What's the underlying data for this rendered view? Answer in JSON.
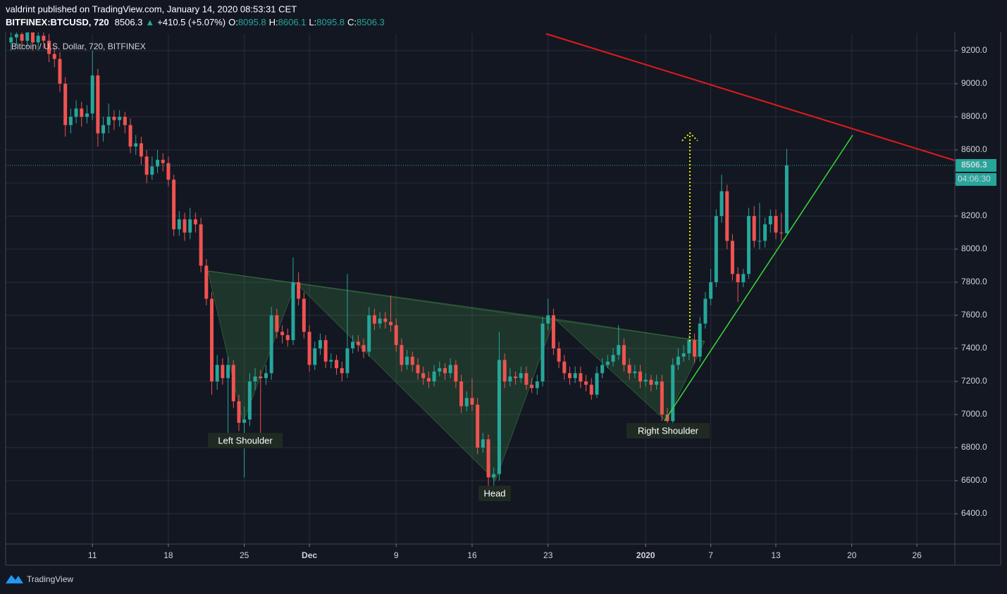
{
  "header": {
    "byline": "valdrint published on TradingView.com, January 14, 2020 08:53:31 CET",
    "symbol": "BITFINEX:BTCUSD, 720",
    "last": "8506.3",
    "arrow": "▲",
    "change": "+410.5 (+5.07%)",
    "ohlc_labels": [
      "O:",
      "H:",
      "L:",
      "C:"
    ],
    "ohlc_values": [
      "8095.8",
      "8606.1",
      "8095.8",
      "8506.3"
    ]
  },
  "chart_data": {
    "type": "candlestick",
    "legend": "Bitcoin / U.S. Dollar, 720, BITFINEX",
    "up_color": "#26a69a",
    "down_color": "#ef5350",
    "ohlc": [
      [
        9250,
        9330,
        9200,
        9280
      ],
      [
        9280,
        9360,
        9230,
        9300
      ],
      [
        9300,
        9350,
        9210,
        9260
      ],
      [
        9260,
        9380,
        9220,
        9310
      ],
      [
        9310,
        9350,
        9200,
        9250
      ],
      [
        9250,
        9340,
        9200,
        9290
      ],
      [
        9290,
        9330,
        9210,
        9260
      ],
      [
        9260,
        9300,
        9130,
        9180
      ],
      [
        9180,
        9220,
        9100,
        9150
      ],
      [
        9150,
        9190,
        8950,
        9000
      ],
      [
        9000,
        9040,
        8680,
        8750
      ],
      [
        8750,
        8850,
        8700,
        8800
      ],
      [
        8800,
        8900,
        8760,
        8850
      ],
      [
        8850,
        8890,
        8740,
        8800
      ],
      [
        8800,
        8870,
        8760,
        8820
      ],
      [
        8820,
        9200,
        8780,
        9050
      ],
      [
        9050,
        9090,
        8620,
        8700
      ],
      [
        8700,
        8800,
        8650,
        8750
      ],
      [
        8750,
        8880,
        8700,
        8800
      ],
      [
        8800,
        8840,
        8720,
        8780
      ],
      [
        8780,
        8840,
        8740,
        8800
      ],
      [
        8800,
        8830,
        8700,
        8750
      ],
      [
        8750,
        8790,
        8580,
        8620
      ],
      [
        8620,
        8690,
        8570,
        8640
      ],
      [
        8640,
        8680,
        8510,
        8560
      ],
      [
        8560,
        8600,
        8400,
        8450
      ],
      [
        8450,
        8560,
        8420,
        8500
      ],
      [
        8500,
        8600,
        8460,
        8540
      ],
      [
        8540,
        8580,
        8470,
        8520
      ],
      [
        8520,
        8560,
        8380,
        8420
      ],
      [
        8420,
        8450,
        8080,
        8120
      ],
      [
        8120,
        8230,
        8080,
        8180
      ],
      [
        8180,
        8220,
        8050,
        8100
      ],
      [
        8100,
        8250,
        8060,
        8180
      ],
      [
        8180,
        8220,
        8100,
        8150
      ],
      [
        8150,
        8190,
        7860,
        7900
      ],
      [
        7900,
        7940,
        7660,
        7700
      ],
      [
        7700,
        7740,
        7120,
        7200
      ],
      [
        7200,
        7360,
        7150,
        7300
      ],
      [
        7300,
        7340,
        7180,
        7220
      ],
      [
        7220,
        7350,
        6850,
        7300
      ],
      [
        7300,
        7330,
        7040,
        7080
      ],
      [
        7080,
        7120,
        6900,
        6950
      ],
      [
        6950,
        7050,
        6620,
        6970
      ],
      [
        6970,
        7250,
        6930,
        7200
      ],
      [
        7200,
        7280,
        7150,
        7230
      ],
      [
        7230,
        7270,
        6880,
        7220
      ],
      [
        7220,
        7300,
        7180,
        7250
      ],
      [
        7250,
        7650,
        7210,
        7600
      ],
      [
        7600,
        7640,
        7460,
        7500
      ],
      [
        7500,
        7540,
        7430,
        7480
      ],
      [
        7480,
        7520,
        7410,
        7450
      ],
      [
        7450,
        7950,
        7420,
        7800
      ],
      [
        7800,
        7860,
        7660,
        7700
      ],
      [
        7700,
        7740,
        7460,
        7500
      ],
      [
        7500,
        7540,
        7260,
        7300
      ],
      [
        7300,
        7440,
        7270,
        7400
      ],
      [
        7400,
        7490,
        7360,
        7450
      ],
      [
        7450,
        7480,
        7280,
        7320
      ],
      [
        7320,
        7370,
        7280,
        7330
      ],
      [
        7330,
        7360,
        7240,
        7280
      ],
      [
        7280,
        7320,
        7200,
        7250
      ],
      [
        7250,
        7850,
        7220,
        7400
      ],
      [
        7400,
        7480,
        7370,
        7440
      ],
      [
        7440,
        7480,
        7380,
        7420
      ],
      [
        7420,
        7460,
        7340,
        7380
      ],
      [
        7380,
        7650,
        7350,
        7600
      ],
      [
        7600,
        7640,
        7510,
        7550
      ],
      [
        7550,
        7620,
        7520,
        7580
      ],
      [
        7580,
        7620,
        7520,
        7560
      ],
      [
        7560,
        7720,
        7500,
        7540
      ],
      [
        7540,
        7580,
        7380,
        7420
      ],
      [
        7420,
        7460,
        7260,
        7300
      ],
      [
        7300,
        7390,
        7270,
        7350
      ],
      [
        7350,
        7380,
        7260,
        7300
      ],
      [
        7300,
        7340,
        7210,
        7250
      ],
      [
        7250,
        7290,
        7180,
        7220
      ],
      [
        7220,
        7260,
        7160,
        7200
      ],
      [
        7200,
        7300,
        7170,
        7260
      ],
      [
        7260,
        7320,
        7230,
        7280
      ],
      [
        7280,
        7310,
        7210,
        7250
      ],
      [
        7250,
        7340,
        7220,
        7300
      ],
      [
        7300,
        7330,
        7160,
        7200
      ],
      [
        7200,
        7240,
        7010,
        7050
      ],
      [
        7050,
        7140,
        7020,
        7100
      ],
      [
        7100,
        7220,
        7020,
        7060
      ],
      [
        7060,
        7100,
        6760,
        6800
      ],
      [
        6800,
        6890,
        6770,
        6850
      ],
      [
        6850,
        6880,
        6560,
        6620
      ],
      [
        6620,
        6680,
        6480,
        6640
      ],
      [
        6640,
        7500,
        6600,
        7330
      ],
      [
        7330,
        7370,
        7160,
        7200
      ],
      [
        7200,
        7280,
        7170,
        7230
      ],
      [
        7230,
        7260,
        7180,
        7220
      ],
      [
        7220,
        7290,
        7190,
        7250
      ],
      [
        7250,
        7290,
        7150,
        7180
      ],
      [
        7180,
        7220,
        7130,
        7160
      ],
      [
        7160,
        7240,
        7120,
        7200
      ],
      [
        7200,
        7590,
        7170,
        7550
      ],
      [
        7550,
        7700,
        7510,
        7600
      ],
      [
        7600,
        7640,
        7360,
        7400
      ],
      [
        7400,
        7440,
        7280,
        7320
      ],
      [
        7320,
        7360,
        7210,
        7250
      ],
      [
        7250,
        7290,
        7180,
        7220
      ],
      [
        7220,
        7290,
        7190,
        7250
      ],
      [
        7250,
        7290,
        7160,
        7200
      ],
      [
        7200,
        7240,
        7140,
        7180
      ],
      [
        7180,
        7220,
        7090,
        7120
      ],
      [
        7120,
        7290,
        7100,
        7250
      ],
      [
        7250,
        7340,
        7220,
        7300
      ],
      [
        7300,
        7360,
        7280,
        7320
      ],
      [
        7320,
        7400,
        7290,
        7360
      ],
      [
        7360,
        7540,
        7330,
        7420
      ],
      [
        7420,
        7460,
        7260,
        7300
      ],
      [
        7300,
        7340,
        7210,
        7250
      ],
      [
        7250,
        7300,
        7220,
        7260
      ],
      [
        7260,
        7300,
        7160,
        7200
      ],
      [
        7200,
        7250,
        7170,
        7210
      ],
      [
        7210,
        7240,
        7140,
        7180
      ],
      [
        7180,
        7240,
        7150,
        7200
      ],
      [
        7200,
        7240,
        6960,
        7000
      ],
      [
        7000,
        7040,
        6930,
        6960
      ],
      [
        6960,
        7340,
        6940,
        7300
      ],
      [
        7300,
        7400,
        7270,
        7350
      ],
      [
        7350,
        7420,
        7320,
        7370
      ],
      [
        7370,
        7480,
        7330,
        7450
      ],
      [
        7450,
        7490,
        7310,
        7350
      ],
      [
        7350,
        7590,
        7320,
        7550
      ],
      [
        7550,
        7740,
        7520,
        7700
      ],
      [
        7700,
        7880,
        7660,
        7800
      ],
      [
        7800,
        8240,
        7770,
        8200
      ],
      [
        8200,
        8450,
        8160,
        8350
      ],
      [
        8350,
        8390,
        8000,
        8050
      ],
      [
        8050,
        8090,
        7810,
        7850
      ],
      [
        7850,
        7890,
        7680,
        7800
      ],
      [
        7800,
        7880,
        7770,
        7850
      ],
      [
        7850,
        8250,
        7820,
        8200
      ],
      [
        8200,
        8260,
        8010,
        8050
      ],
      [
        8050,
        8280,
        8000,
        8050
      ],
      [
        8050,
        8190,
        8010,
        8150
      ],
      [
        8150,
        8240,
        8100,
        8200
      ],
      [
        8200,
        8240,
        8060,
        8100
      ],
      [
        8100,
        8220,
        8050,
        8095.8
      ],
      [
        8095.8,
        8606.1,
        8095.8,
        8506.3
      ]
    ],
    "xlim": [
      -1,
      174
    ],
    "ylim": [
      6217,
      9302
    ],
    "xticks": [
      {
        "value": 15,
        "label": "11"
      },
      {
        "value": 29,
        "label": "18"
      },
      {
        "value": 43,
        "label": "25"
      },
      {
        "value": 55,
        "label": "Dec"
      },
      {
        "value": 71,
        "label": "9"
      },
      {
        "value": 85,
        "label": "16"
      },
      {
        "value": 99,
        "label": "23"
      },
      {
        "value": 117,
        "label": "2020"
      },
      {
        "value": 129,
        "label": "7"
      },
      {
        "value": 141,
        "label": "13"
      },
      {
        "value": 155,
        "label": "20"
      },
      {
        "value": 167,
        "label": "26"
      }
    ],
    "yticks": [
      {
        "value": 6400,
        "label": "6400.0"
      },
      {
        "value": 6600,
        "label": "6600.0"
      },
      {
        "value": 6800,
        "label": "6800.0"
      },
      {
        "value": 7000,
        "label": "7000.0"
      },
      {
        "value": 7200,
        "label": "7200.0"
      },
      {
        "value": 7400,
        "label": "7400.0"
      },
      {
        "value": 7600,
        "label": "7600.0"
      },
      {
        "value": 7800,
        "label": "7800.0"
      },
      {
        "value": 8000,
        "label": "8000.0"
      },
      {
        "value": 8200,
        "label": "8200.0"
      },
      {
        "value": 8400,
        "label": "8400.0"
      },
      {
        "value": 8600,
        "label": "8600.0"
      },
      {
        "value": 8800,
        "label": "8800.0"
      },
      {
        "value": 9000,
        "label": "9000.0"
      },
      {
        "value": 9200,
        "label": "9200.0"
      }
    ],
    "grid": true,
    "last_price_label": "8506.3",
    "countdown": "04:06:30",
    "annotations": [
      "Left Shoulder",
      "Head",
      "Right Shoulder"
    ]
  },
  "footer": {
    "brand": "TradingView"
  }
}
